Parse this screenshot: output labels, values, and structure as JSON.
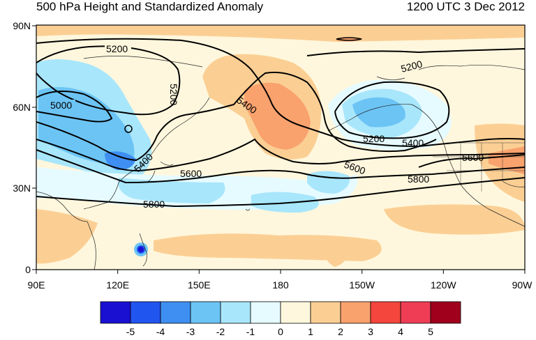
{
  "title": "500 hPa Height and Standardized Anomaly",
  "valid_time": "1200 UTC 3 Dec 2012",
  "map": {
    "lat_ticks": [
      "90N",
      "60N",
      "30N",
      "0"
    ],
    "lon_ticks": [
      "90E",
      "120E",
      "150E",
      "180",
      "150W",
      "120W",
      "90W"
    ],
    "contour_labels": [
      "5200",
      "5000",
      "5200",
      "5400",
      "5600",
      "5800",
      "5400",
      "5200",
      "5600",
      "5200",
      "5400",
      "5600",
      "5800"
    ]
  },
  "colorbar": {
    "labels": [
      "-5",
      "-4",
      "-3",
      "-2",
      "-1",
      "0",
      "1",
      "2",
      "3",
      "4",
      "5"
    ],
    "colors": [
      "#1a10d2",
      "#2155f0",
      "#3f8ff2",
      "#6cc4f5",
      "#a8e6fb",
      "#e6fbff",
      "#fff7dd",
      "#fbcf94",
      "#f9a26d",
      "#f4463d",
      "#ee3d55",
      "#a0001c"
    ]
  }
}
